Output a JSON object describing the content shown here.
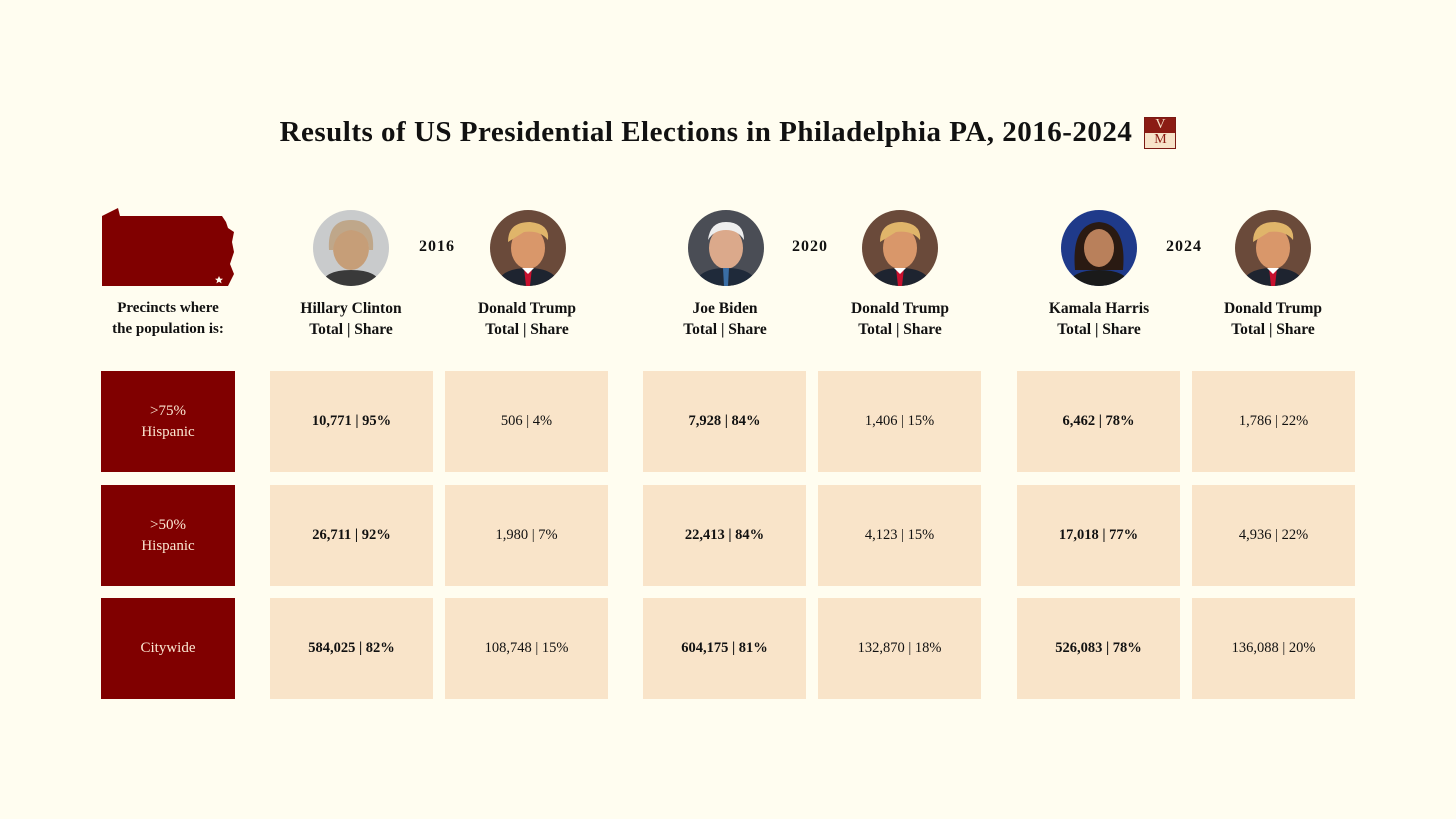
{
  "title": "Results of US Presidential Elections in Philadelphia PA, 2016-2024",
  "logo": {
    "top": "V",
    "bottom": "M"
  },
  "precinct_label": [
    "Precincts where",
    "the population is:"
  ],
  "colors": {
    "background": "#fffdf0",
    "row_label": "#800000",
    "cell": "#f9e4c9",
    "map": "#800000"
  },
  "rows": [
    {
      "label": [
        ">75%",
        "Hispanic"
      ]
    },
    {
      "label": [
        ">50%",
        "Hispanic"
      ]
    },
    {
      "label": [
        "Citywide"
      ]
    }
  ],
  "elections": [
    {
      "year": "2016",
      "candidates": [
        {
          "name": "Hillary Clinton",
          "sub": "Total | Share",
          "portrait": "hillary-clinton-portrait"
        },
        {
          "name": "Donald Trump",
          "sub": "Total | Share",
          "portrait": "donald-trump-portrait"
        }
      ]
    },
    {
      "year": "2020",
      "candidates": [
        {
          "name": "Joe Biden",
          "sub": "Total | Share",
          "portrait": "joe-biden-portrait"
        },
        {
          "name": "Donald Trump",
          "sub": "Total | Share",
          "portrait": "donald-trump-portrait"
        }
      ]
    },
    {
      "year": "2024",
      "candidates": [
        {
          "name": "Kamala Harris",
          "sub": "Total | Share",
          "portrait": "kamala-harris-portrait"
        },
        {
          "name": "Donald Trump",
          "sub": "Total | Share",
          "portrait": "donald-trump-portrait"
        }
      ]
    }
  ],
  "chart_data": {
    "type": "table",
    "title": "Results of US Presidential Elections in Philadelphia PA, 2016-2024",
    "row_header": "Precincts where the population is:",
    "rows": [
      ">75% Hispanic",
      ">50% Hispanic",
      "Citywide"
    ],
    "columns": [
      {
        "year": "2016",
        "candidate": "Hillary Clinton",
        "winner": true,
        "cells": [
          "10,771 | 95%",
          "26,711 | 92%",
          "584,025 | 82%"
        ]
      },
      {
        "year": "2016",
        "candidate": "Donald Trump",
        "winner": false,
        "cells": [
          "506 | 4%",
          "1,980 | 7%",
          "108,748 | 15%"
        ]
      },
      {
        "year": "2020",
        "candidate": "Joe Biden",
        "winner": true,
        "cells": [
          "7,928 | 84%",
          "22,413 | 84%",
          "604,175 | 81%"
        ]
      },
      {
        "year": "2020",
        "candidate": "Donald Trump",
        "winner": false,
        "cells": [
          "1,406 | 15%",
          "4,123 | 15%",
          "132,870 | 18%"
        ]
      },
      {
        "year": "2024",
        "candidate": "Kamala Harris",
        "winner": true,
        "cells": [
          "6,462 | 78%",
          "17,018 | 77%",
          "526,083 | 78%"
        ]
      },
      {
        "year": "2024",
        "candidate": "Donald Trump",
        "winner": false,
        "cells": [
          "1,786 | 22%",
          "4,936 | 22%",
          "136,088 | 20%"
        ]
      }
    ]
  }
}
